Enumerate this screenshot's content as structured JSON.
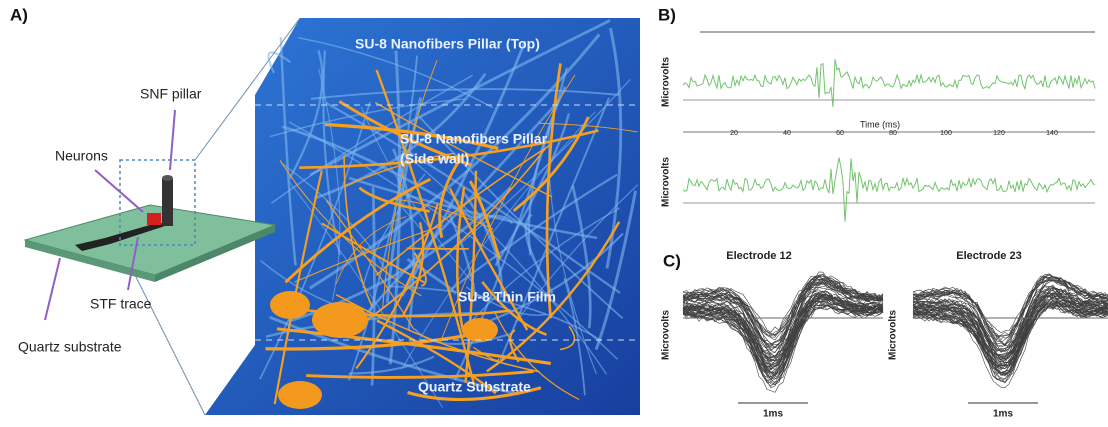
{
  "panel_a": {
    "label": "A)",
    "annotations": {
      "snf_pillar": "SNF pillar",
      "neurons": "Neurons",
      "stf_trace": "STF trace",
      "quartz_substrate": "Quartz substrate"
    },
    "image_labels": {
      "top": "SU-8 Nanofibers Pillar (Top)",
      "side_wall": [
        "SU-8 Nanofibers Pillar",
        "(Side wall)"
      ],
      "thin_film": "SU-8 Thin Film",
      "substrate": "Quartz Substrate"
    }
  },
  "panel_b": {
    "label": "B)",
    "y_label": "Microvolts",
    "x_label": "Time (ms)",
    "x_ticks": [
      "20",
      "40",
      "60",
      "80",
      "100",
      "120",
      "140"
    ]
  },
  "panel_c": {
    "label": "C)",
    "y_label": "Microvolts",
    "plots": [
      {
        "title": "Electrode 12",
        "scale_bar": "1ms"
      },
      {
        "title": "Electrode 23",
        "scale_bar": "1ms"
      }
    ]
  }
}
